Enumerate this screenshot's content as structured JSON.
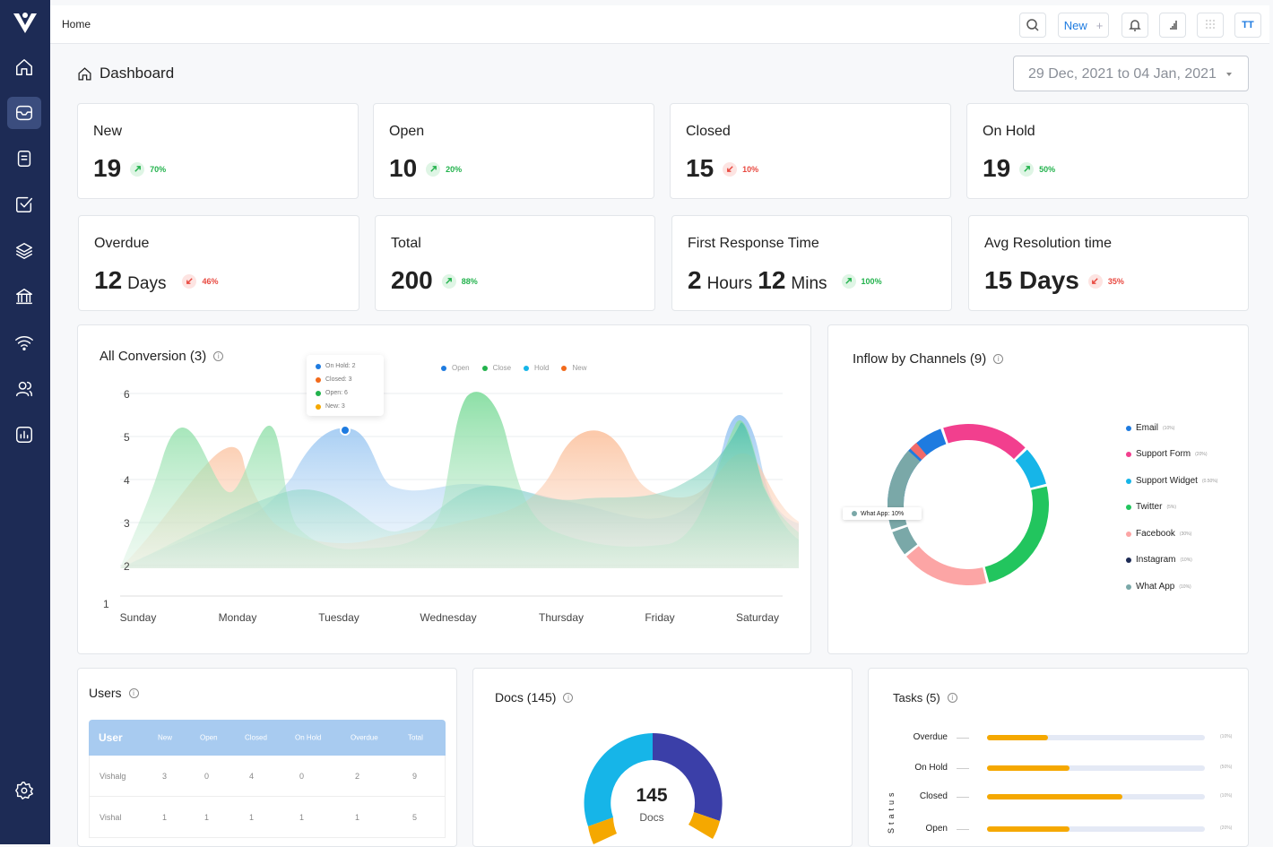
{
  "topbar": {
    "breadcrumb": "Home",
    "new_label": "New",
    "new_plus": "+",
    "avatar_initials": "TT"
  },
  "page": {
    "title": "Dashboard",
    "date_range": "29 Dec, 2021 to 04 Jan, 2021"
  },
  "stats": [
    {
      "label": "New",
      "value": "19",
      "unit": "",
      "trend": "up",
      "pct": "70%"
    },
    {
      "label": "Open",
      "value": "10",
      "unit": "",
      "trend": "up",
      "pct": "20%"
    },
    {
      "label": "Closed",
      "value": "15",
      "unit": "",
      "trend": "down",
      "pct": "10%"
    },
    {
      "label": "On Hold",
      "value": "19",
      "unit": "",
      "trend": "up",
      "pct": "50%"
    },
    {
      "label": "Overdue",
      "value": "12",
      "unit": "Days",
      "trend": "down",
      "pct": "46%"
    },
    {
      "label": "Total",
      "value": "200",
      "unit": "",
      "trend": "up",
      "pct": "88%"
    },
    {
      "label": "First Response Time",
      "value": "2",
      "unit": "Hours",
      "value2": "12",
      "unit2": "Mins",
      "trend": "up",
      "pct": "100%"
    },
    {
      "label": "Avg Resolution time",
      "value": "15 Days",
      "unit": "",
      "trend": "down",
      "pct": "35%"
    }
  ],
  "conversion": {
    "title": "All Conversion (3)",
    "legend": [
      {
        "name": "Open",
        "color": "#1e7be0"
      },
      {
        "name": "Close",
        "color": "#22b24c"
      },
      {
        "name": "Hold",
        "color": "#16b5e8"
      },
      {
        "name": "New",
        "color": "#f26a1b"
      }
    ],
    "tooltip": [
      "On Hold: 2",
      "Closed: 3",
      "Open: 6",
      "New: 3"
    ],
    "y_ticks": [
      "6",
      "5",
      "4",
      "3",
      "2",
      "1"
    ],
    "x_ticks": [
      "Sunday",
      "Monday",
      "Tuesday",
      "Wednesday",
      "Thursday",
      "Friday",
      "Saturday"
    ]
  },
  "channels": {
    "title": "Inflow by Channels (9)",
    "tooltip": "What App: 10%",
    "items": [
      {
        "name": "Email",
        "pct": "(10%)",
        "color": "#1e7be0"
      },
      {
        "name": "Support Form",
        "pct": "(20%)",
        "color": "#f23f8e"
      },
      {
        "name": "Support Widget",
        "pct": "(0.50%)",
        "color": "#16b5e8"
      },
      {
        "name": "Twitter",
        "pct": "(5%)",
        "color": "#22c55e"
      },
      {
        "name": "Facebook",
        "pct": "(30%)",
        "color": "#fca5a5"
      },
      {
        "name": "Instagram",
        "pct": "(10%)",
        "color": "#1d2b55"
      },
      {
        "name": "What App",
        "pct": "(10%)",
        "color": "#7aa8a8"
      }
    ]
  },
  "users": {
    "title": "Users",
    "columns": [
      "User",
      "New",
      "Open",
      "Closed",
      "On Hold",
      "Overdue",
      "Total"
    ],
    "rows": [
      [
        "Vishalg",
        "3",
        "0",
        "4",
        "0",
        "2",
        "9"
      ],
      [
        "Vishal",
        "1",
        "1",
        "1",
        "1",
        "1",
        "5"
      ]
    ]
  },
  "docs": {
    "title": "Docs (145)",
    "count": "145",
    "count_label": "Docs"
  },
  "tasks": {
    "title": "Tasks (5)",
    "axis_label": "Status",
    "rows": [
      {
        "label": "Overdue",
        "pct": "(10%)",
        "fill": 0.28
      },
      {
        "label": "On Hold",
        "pct": "(50%)",
        "fill": 0.38
      },
      {
        "label": "Closed",
        "pct": "(10%)",
        "fill": 0.62
      },
      {
        "label": "Open",
        "pct": "(20%)",
        "fill": 0.38
      }
    ]
  }
}
